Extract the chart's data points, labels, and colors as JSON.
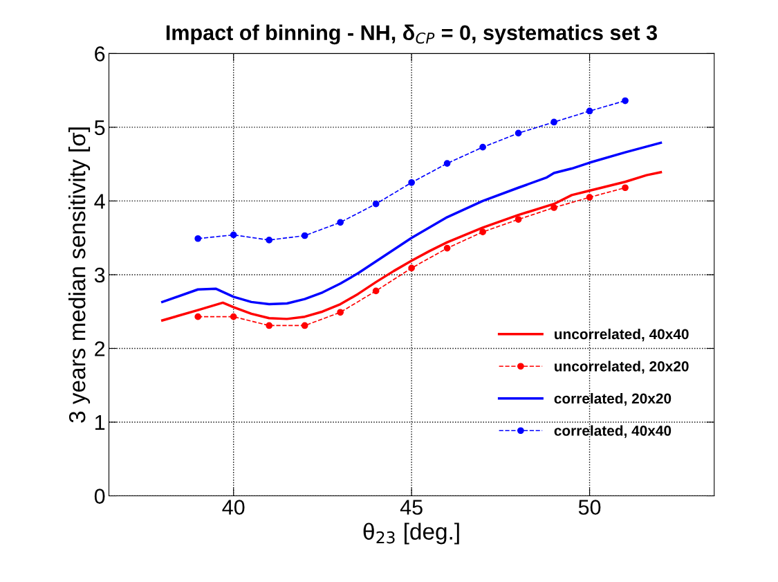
{
  "chart_data": {
    "type": "line",
    "title": "Impact of binning - NH, δ$_{CP}$ = 0, systematics set 3",
    "xlabel": "θ$_{23}$ [deg.]",
    "ylabel": "3 years median sensitivity [σ]",
    "xlim": [
      36.5,
      53.5
    ],
    "xticks": [
      40,
      45,
      50
    ],
    "ylim": [
      0,
      6
    ],
    "yticks": [
      0,
      1,
      2,
      3,
      4,
      5,
      6
    ],
    "grid": true,
    "legend": "bottom right",
    "series": [
      {
        "name": "uncorrelated, 40x40",
        "color": "#ff0000",
        "line_style": "solid",
        "marker": "none",
        "x": [
          38,
          39,
          39.7,
          40,
          40.5,
          41,
          41.5,
          42,
          42.5,
          43,
          43.5,
          44,
          44.5,
          45,
          45.5,
          46,
          47,
          48,
          49,
          49.5,
          50,
          51,
          51.6,
          52
        ],
        "values": [
          2.38,
          2.52,
          2.62,
          2.56,
          2.47,
          2.41,
          2.4,
          2.43,
          2.5,
          2.6,
          2.74,
          2.9,
          3.05,
          3.19,
          3.32,
          3.44,
          3.64,
          3.81,
          3.96,
          4.08,
          4.14,
          4.26,
          4.35,
          4.39
        ]
      },
      {
        "name": "uncorrelated, 20x20",
        "color": "#ff0000",
        "line_style": "dashed",
        "marker": "circle",
        "x": [
          39,
          40,
          41,
          42,
          43,
          44,
          45,
          46,
          47,
          48,
          49,
          50,
          51
        ],
        "values": [
          2.43,
          2.43,
          2.31,
          2.31,
          2.49,
          2.78,
          3.09,
          3.36,
          3.58,
          3.75,
          3.91,
          4.05,
          4.18
        ]
      },
      {
        "name": "correlated, 20x20",
        "color": "#0000ff",
        "line_style": "solid",
        "marker": "none",
        "x": [
          38,
          39,
          39.5,
          40,
          40.5,
          41,
          41.5,
          42,
          42.5,
          43,
          43.5,
          44,
          45,
          46,
          47,
          48,
          48.8,
          49,
          49.5,
          50,
          51,
          52
        ],
        "values": [
          2.63,
          2.8,
          2.81,
          2.7,
          2.63,
          2.6,
          2.61,
          2.67,
          2.76,
          2.88,
          3.02,
          3.18,
          3.5,
          3.78,
          4.0,
          4.18,
          4.32,
          4.38,
          4.44,
          4.52,
          4.66,
          4.79
        ]
      },
      {
        "name": "correlated, 40x40",
        "color": "#0000ff",
        "line_style": "dashed",
        "marker": "circle",
        "x": [
          39,
          40,
          41,
          42,
          43,
          44,
          45,
          46,
          47,
          48,
          49,
          50,
          51
        ],
        "values": [
          3.49,
          3.54,
          3.47,
          3.53,
          3.71,
          3.96,
          4.25,
          4.51,
          4.73,
          4.92,
          5.07,
          5.22,
          5.36
        ]
      }
    ]
  }
}
